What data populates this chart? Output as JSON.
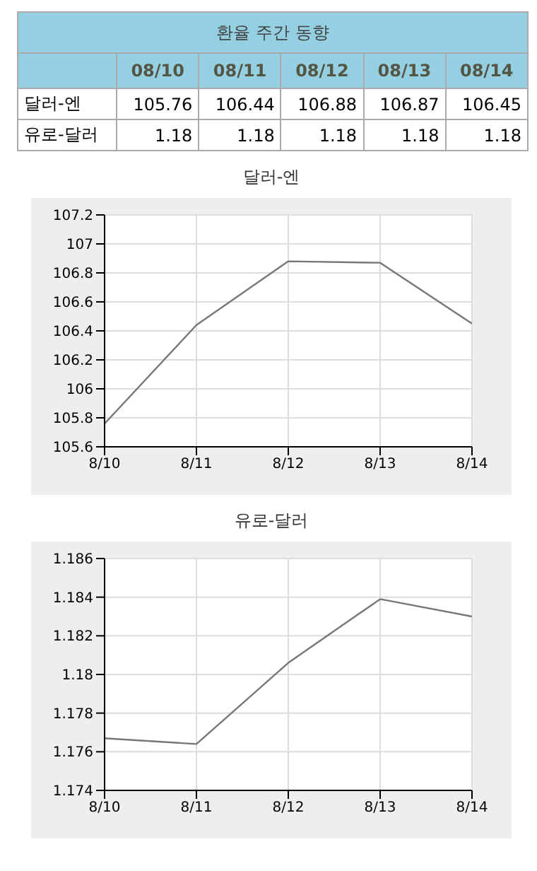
{
  "chart_data": [
    {
      "type": "other",
      "title": "환율 주간 동향",
      "categories": [
        "08/10",
        "08/11",
        "08/12",
        "08/13",
        "08/14"
      ],
      "data_labels": true,
      "series": [
        {
          "name": "달러-엔",
          "values": [
            105.76,
            106.44,
            106.88,
            106.87,
            106.45
          ]
        },
        {
          "name": "유로-달러",
          "values": [
            1.18,
            1.18,
            1.18,
            1.18,
            1.18
          ]
        }
      ]
    },
    {
      "type": "line",
      "title": "달러-엔",
      "categories": [
        "8/10",
        "8/11",
        "8/12",
        "8/13",
        "8/14"
      ],
      "values": [
        105.76,
        106.44,
        106.88,
        106.87,
        106.45
      ],
      "color": "#777777",
      "ylim": [
        105.6,
        107.2
      ],
      "yticks": [
        105.6,
        105.8,
        106,
        106.2,
        106.4,
        106.6,
        106.8,
        107,
        107.2
      ],
      "grid": true,
      "marker": "none"
    },
    {
      "type": "line",
      "title": "유로-달러",
      "categories": [
        "8/10",
        "8/11",
        "8/12",
        "8/13",
        "8/14"
      ],
      "values": [
        1.1767,
        1.1764,
        1.1806,
        1.1839,
        1.183
      ],
      "color": "#777777",
      "ylim": [
        1.174,
        1.186
      ],
      "yticks": [
        1.174,
        1.176,
        1.178,
        1.18,
        1.182,
        1.184,
        1.186
      ],
      "grid": true,
      "marker": "none"
    }
  ]
}
